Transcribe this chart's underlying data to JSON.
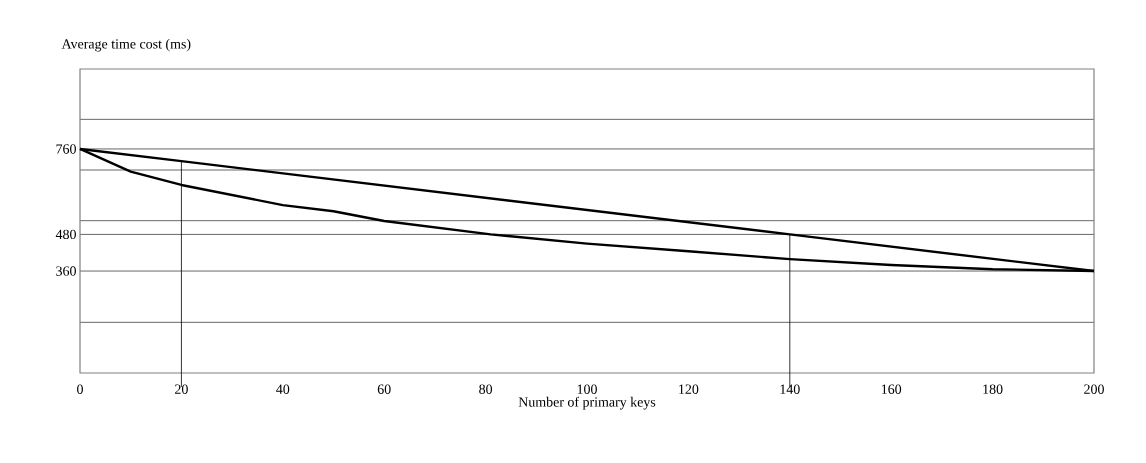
{
  "chart_data": {
    "type": "line",
    "xlabel": "Number of primary keys",
    "ylabel": "Average time cost (ms)",
    "x": [
      0,
      20,
      140,
      200
    ],
    "series": [
      {
        "color": "#000000",
        "values": [
          760,
          720,
          480,
          360
        ]
      },
      {
        "color": "#000000",
        "x": [
          0,
          10,
          20,
          40,
          50,
          60,
          81,
          100,
          120,
          140,
          160,
          180,
          200
        ],
        "values": [
          760,
          686,
          642,
          576,
          556,
          524,
          480,
          450,
          425,
          399,
          380,
          366,
          360
        ]
      }
    ],
    "xlim": [
      0,
      200
    ],
    "xticks": [
      0,
      20,
      40,
      60,
      80,
      100,
      120,
      140,
      160,
      180,
      200
    ],
    "ylim": [
      26,
      1022
    ],
    "yticks": [
      {
        "value": 192,
        "label": null
      },
      360,
      480,
      {
        "value": 525,
        "label": null
      },
      {
        "value": 691,
        "label": null
      },
      760,
      {
        "value": 857,
        "label": null
      }
    ],
    "ref_lines": [
      {
        "axis": "x",
        "value": 20
      },
      {
        "axis": "x",
        "value": 140
      }
    ],
    "grid": "y",
    "marker": "none",
    "line_style": "solid"
  }
}
